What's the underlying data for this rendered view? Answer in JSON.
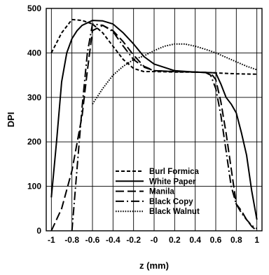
{
  "chart_data": {
    "type": "line",
    "xlabel": "z (mm)",
    "ylabel": "DPI",
    "xlim": [
      -1.05,
      1.05
    ],
    "ylim": [
      0,
      500
    ],
    "x_ticks": [
      -1,
      -0.8,
      -0.6,
      -0.4,
      -0.2,
      0,
      0.2,
      0.4,
      0.6,
      0.8,
      1
    ],
    "x_tick_labels": [
      "-1",
      "-0.8",
      "-0.6",
      "-0.4",
      "-0.2",
      "-0",
      "0.2",
      "0.4",
      "0.6",
      "0.8",
      "1"
    ],
    "y_ticks": [
      0,
      100,
      200,
      300,
      400,
      500
    ],
    "y_tick_labels": [
      "0",
      "100",
      "200",
      "300",
      "400",
      "500"
    ],
    "grid": true,
    "legend_position": "bottom-right",
    "series": [
      {
        "name": "Burl Formica",
        "dash": "short-dash",
        "x": [
          -1.0,
          -0.9,
          -0.8,
          -0.7,
          -0.6,
          -0.5,
          -0.4,
          -0.3,
          -0.2,
          -0.1,
          0.0,
          0.2,
          0.4,
          0.6,
          0.8,
          1.0
        ],
        "y": [
          400,
          445,
          475,
          473,
          465,
          445,
          415,
          385,
          365,
          358,
          358,
          357,
          357,
          355,
          353,
          352
        ]
      },
      {
        "name": "White Paper",
        "dash": "solid",
        "x": [
          -1.0,
          -0.95,
          -0.9,
          -0.85,
          -0.8,
          -0.75,
          -0.7,
          -0.6,
          -0.5,
          -0.4,
          -0.3,
          -0.2,
          -0.1,
          0.0,
          0.2,
          0.4,
          0.6,
          0.65,
          0.7,
          0.75,
          0.8,
          0.85,
          0.9,
          0.95,
          1.0
        ],
        "y": [
          75,
          200,
          335,
          400,
          432,
          450,
          462,
          473,
          472,
          465,
          445,
          420,
          392,
          375,
          360,
          357,
          355,
          330,
          300,
          285,
          265,
          220,
          170,
          90,
          25
        ]
      },
      {
        "name": "Manila",
        "dash": "long-dash",
        "x": [
          -1.0,
          -0.9,
          -0.8,
          -0.7,
          -0.65,
          -0.6,
          -0.5,
          -0.4,
          -0.3,
          -0.2,
          -0.1,
          0.0,
          0.2,
          0.4,
          0.5,
          0.55,
          0.6,
          0.65,
          0.7,
          0.75,
          0.8,
          0.85,
          0.9,
          0.95,
          1.0
        ],
        "y": [
          0,
          50,
          135,
          260,
          360,
          450,
          462,
          450,
          425,
          395,
          370,
          360,
          358,
          357,
          356,
          355,
          340,
          290,
          220,
          140,
          60,
          45,
          25,
          10,
          0
        ]
      },
      {
        "name": "Black Copy",
        "dash": "dash-dot",
        "x": [
          -0.8,
          -0.75,
          -0.7,
          -0.65,
          -0.6,
          -0.5,
          -0.4,
          -0.3,
          -0.2,
          -0.1,
          0.0,
          0.2,
          0.4,
          0.5,
          0.55,
          0.6,
          0.65,
          0.7,
          0.75,
          0.8,
          0.85,
          0.9,
          0.95,
          1.0
        ],
        "y": [
          0,
          140,
          280,
          400,
          465,
          462,
          448,
          415,
          385,
          368,
          360,
          358,
          357,
          356,
          350,
          320,
          260,
          180,
          100,
          60,
          40,
          25,
          12,
          5
        ]
      },
      {
        "name": "Black Walnut",
        "dash": "dotted",
        "x": [
          -0.6,
          -0.5,
          -0.4,
          -0.3,
          -0.2,
          -0.1,
          0.0,
          0.1,
          0.2,
          0.3,
          0.4,
          0.5,
          0.6,
          0.7,
          0.8,
          0.9,
          1.0
        ],
        "y": [
          285,
          320,
          350,
          370,
          385,
          393,
          405,
          415,
          420,
          420,
          415,
          408,
          400,
          390,
          380,
          370,
          362
        ]
      }
    ]
  }
}
